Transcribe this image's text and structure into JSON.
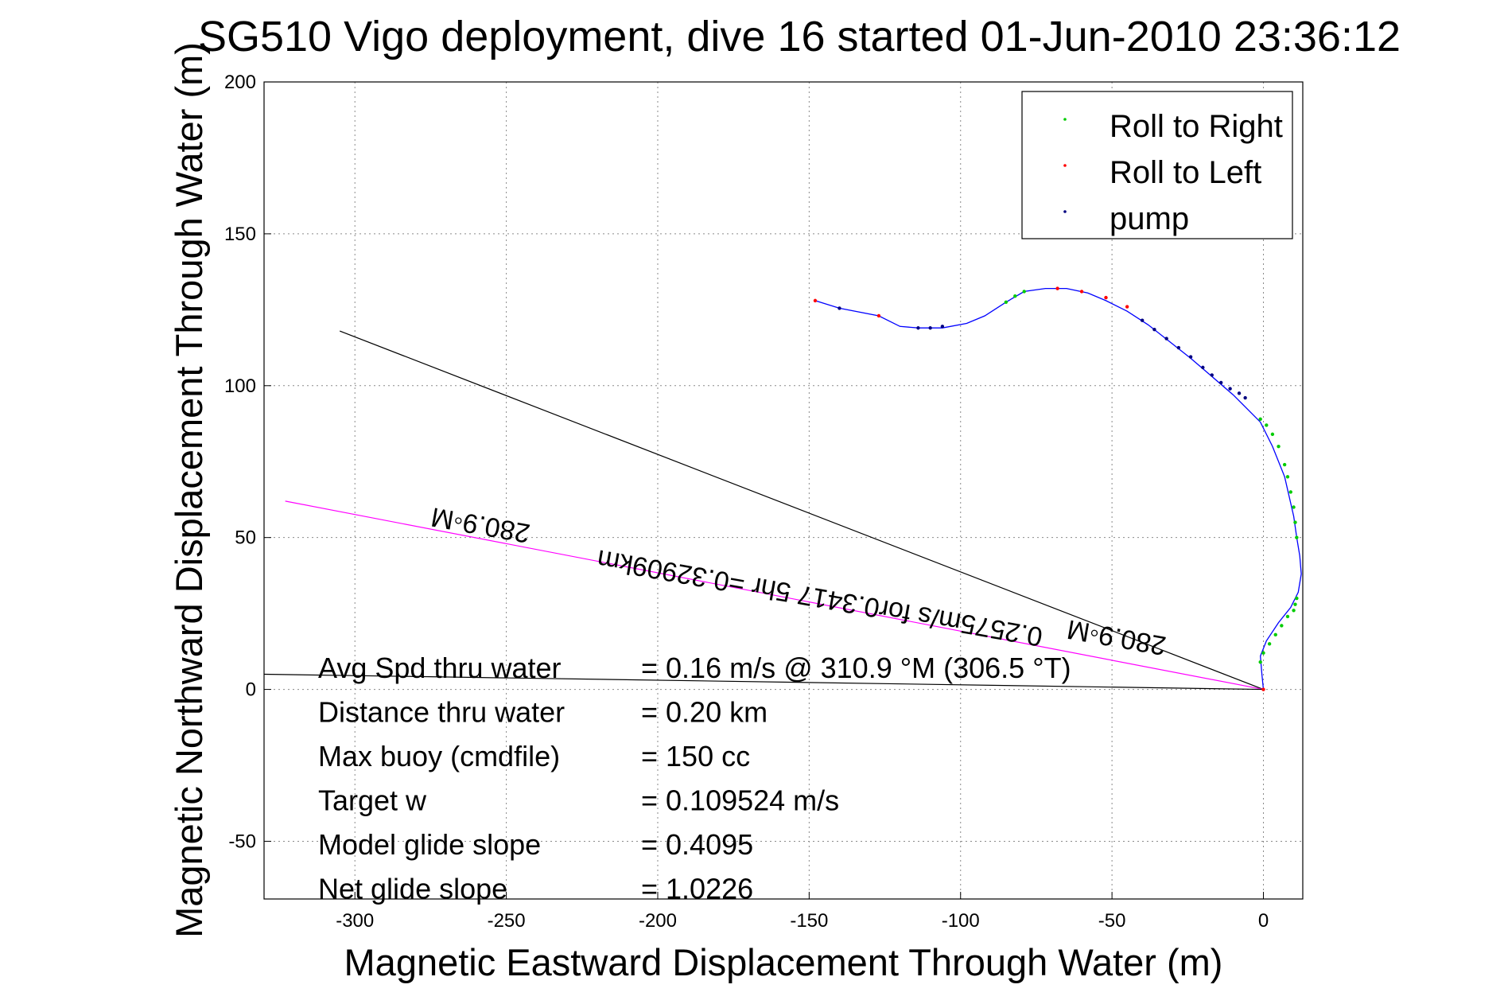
{
  "chart_data": {
    "type": "line",
    "title": "SG510 Vigo deployment, dive 16 started 01-Jun-2010 23:36:12",
    "xlabel": "Magnetic Eastward Displacement Through Water (m)",
    "ylabel": "Magnetic Northward Displacement Through Water (m)",
    "xlim": [
      -330,
      13
    ],
    "ylim": [
      -69,
      200
    ],
    "xticks": [
      -300,
      -250,
      -200,
      -150,
      -100,
      -50,
      0
    ],
    "yticks": [
      200,
      150,
      100,
      50,
      0,
      -50
    ],
    "xtick_labels": [
      "-300",
      "-250",
      "-200",
      "-150",
      "-100",
      "-50",
      "0"
    ],
    "ytick_labels": [
      "200",
      "150",
      "100",
      "50",
      "0",
      "-50"
    ],
    "grid": true,
    "legend_position": "top-right",
    "legend": [
      {
        "label": "Roll to Right",
        "color": "#00cc00"
      },
      {
        "label": "Roll to Left",
        "color": "#ff0000"
      },
      {
        "label": "pump",
        "color": "#000080"
      }
    ],
    "track": {
      "color": "#0000ff",
      "x": [
        -148,
        -140,
        -127,
        -120,
        -114,
        -106,
        -98,
        -92,
        -85,
        -79,
        -72,
        -65,
        -58,
        -52,
        -45,
        -38,
        -31,
        -24,
        -17,
        -10,
        -5,
        -1,
        3,
        7,
        10,
        11,
        12,
        12.5,
        11.5,
        9,
        5,
        1,
        -1,
        -0.5,
        0
      ],
      "y": [
        128,
        125.5,
        123,
        119.5,
        119,
        119,
        120.5,
        123,
        127.5,
        131,
        132,
        132,
        130.5,
        128,
        124.5,
        120,
        114.5,
        109,
        103,
        97,
        92,
        88,
        80,
        70,
        57,
        50,
        44,
        38,
        32,
        27,
        22,
        16,
        11,
        5,
        0
      ]
    },
    "roll_right_points": {
      "color": "#00cc00",
      "x": [
        -85,
        -82,
        -79,
        -1,
        1,
        3,
        5,
        7,
        8,
        9,
        10,
        10.5,
        11,
        11,
        10.5,
        10,
        8,
        6,
        4,
        2,
        0,
        -1
      ],
      "y": [
        127.5,
        129.5,
        131,
        89,
        87,
        84,
        80,
        74,
        70,
        65,
        60,
        55,
        50,
        30,
        28,
        26,
        24,
        21,
        18,
        15,
        12,
        9
      ]
    },
    "roll_left_points": {
      "color": "#ff0000",
      "x": [
        -148,
        -127,
        -68,
        -60,
        -52,
        -45,
        0
      ],
      "y": [
        128,
        123,
        132,
        131,
        129,
        126,
        0
      ]
    },
    "pump_points": {
      "color": "#000080",
      "x": [
        -140,
        -114,
        -110,
        -106,
        -40,
        -36,
        -32,
        -28,
        -24,
        -20,
        -17,
        -14,
        -11,
        -8,
        -6
      ],
      "y": [
        125.5,
        119,
        119,
        119.5,
        121.5,
        118.5,
        115.5,
        112.5,
        109.5,
        106,
        103.5,
        101,
        99,
        97.5,
        96
      ]
    },
    "reference_lines": [
      {
        "color": "#000000",
        "x": [
          -305,
          0
        ],
        "y": [
          118,
          0
        ]
      },
      {
        "color": "#ff00ff",
        "x": [
          -323,
          0
        ],
        "y": [
          62,
          0
        ]
      },
      {
        "color": "#000000",
        "x": [
          -330,
          0
        ],
        "y": [
          5,
          0
        ]
      }
    ],
    "annotations": [
      {
        "text": "280.9◦M",
        "x": -258,
        "y": 57,
        "rotation": 190
      },
      {
        "text": "280.9◦M",
        "x": -48,
        "y": 20,
        "rotation": 190
      },
      {
        "text": "0.2575m/s for0.3417 5hr =0.32909km",
        "x": -146,
        "y": 33,
        "rotation": 190
      }
    ]
  },
  "stats": [
    {
      "label": "Avg Spd thru water",
      "value": "=  0.16 m/s @ 310.9 °M (306.5 °T)"
    },
    {
      "label": "Distance thru water",
      "value": "=  0.20 km"
    },
    {
      "label": "Max buoy (cmdfile)",
      "value": "= 150 cc"
    },
    {
      "label": "Target w",
      "value": "= 0.109524 m/s"
    },
    {
      "label": "Model glide slope",
      "value": "= 0.4095"
    },
    {
      "label": "Net glide slope",
      "value": "= 1.0226"
    }
  ]
}
